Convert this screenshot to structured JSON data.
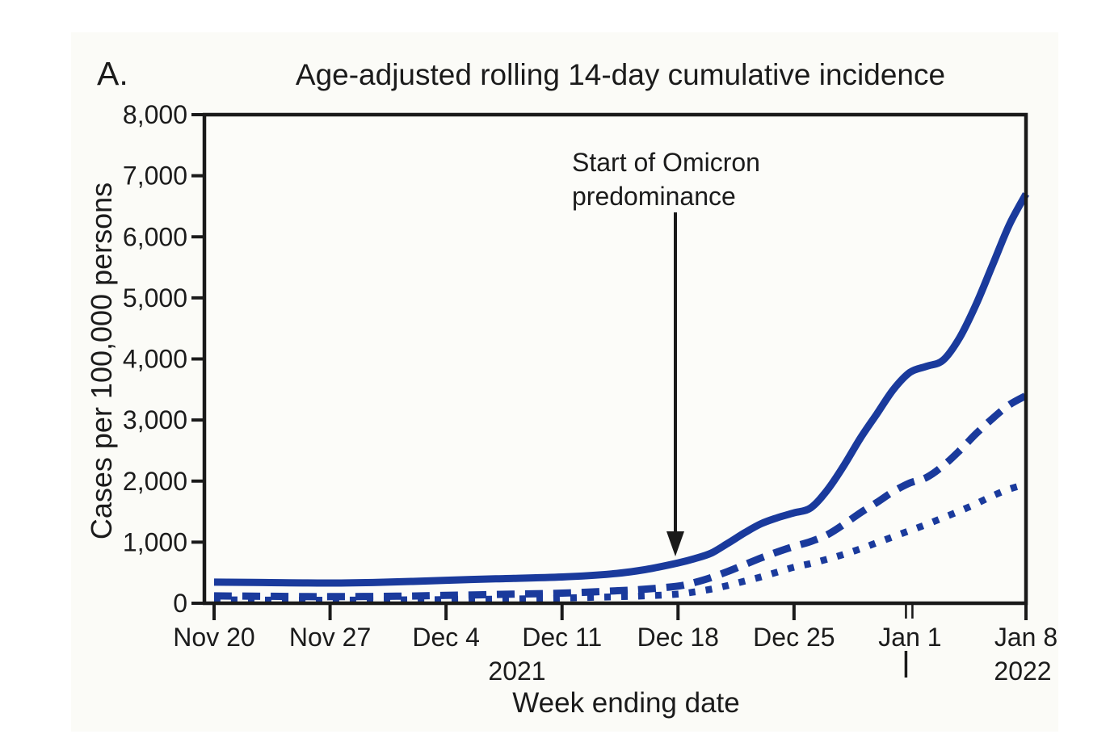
{
  "figure": {
    "panel_label": "A.",
    "title": "Age-adjusted rolling 14-day cumulative incidence",
    "annotation": {
      "line1": "Start of Omicron",
      "line2": "predominance"
    },
    "y_axis": {
      "title": "Cases per 100,000 persons"
    },
    "x_axis": {
      "title": "Week ending date",
      "year_left": "2021",
      "year_right": "2022"
    }
  },
  "colors": {
    "line_blue": "#1a3a9c",
    "axis_black": "#1a1a1a",
    "plot_fill": "#fcfcf9",
    "figure_fill": "#fbfbf7"
  },
  "chart_data": {
    "type": "line",
    "title": "Age-adjusted rolling 14-day cumulative incidence",
    "xlabel": "Week ending date",
    "ylabel": "Cases per 100,000 persons",
    "ylim": [
      0,
      8000
    ],
    "y_tick_step": 1000,
    "y_tick_labels": [
      "8,000",
      "7,000",
      "6,000",
      "5,000",
      "4,000",
      "3,000",
      "2,000",
      "1,000",
      "0"
    ],
    "x_tick_labels": [
      "Nov 20",
      "Nov 27",
      "Dec 4",
      "Dec 11",
      "Dec 18",
      "Dec 25",
      "Jan 1",
      "Jan 8"
    ],
    "x_tick_days": [
      0,
      7,
      14,
      21,
      28,
      35,
      42,
      49
    ],
    "x_day_range": [
      0,
      49
    ],
    "year_break_label": "Jan 1",
    "year_left": "2021",
    "year_right": "2022",
    "grid": false,
    "legend": "none (line styles distinguish series)",
    "annotation": {
      "text": "Start of Omicron predominance",
      "arrow_x_day": 27.8,
      "arrow_points_to_y": 700
    },
    "series": [
      {
        "name": "solid-line",
        "style": "solid",
        "points": [
          [
            0,
            345
          ],
          [
            3,
            338
          ],
          [
            7,
            330
          ],
          [
            10,
            342
          ],
          [
            14,
            375
          ],
          [
            17,
            400
          ],
          [
            21,
            430
          ],
          [
            24,
            480
          ],
          [
            26,
            550
          ],
          [
            28,
            660
          ],
          [
            29,
            730
          ],
          [
            30,
            820
          ],
          [
            31,
            980
          ],
          [
            32,
            1150
          ],
          [
            33,
            1300
          ],
          [
            34,
            1400
          ],
          [
            35,
            1480
          ],
          [
            36,
            1560
          ],
          [
            37,
            1850
          ],
          [
            38,
            2250
          ],
          [
            39,
            2700
          ],
          [
            40,
            3100
          ],
          [
            41,
            3500
          ],
          [
            42,
            3780
          ],
          [
            43,
            3880
          ],
          [
            44,
            3980
          ],
          [
            45,
            4350
          ],
          [
            46,
            4900
          ],
          [
            47,
            5550
          ],
          [
            48,
            6200
          ],
          [
            49,
            6700
          ]
        ]
      },
      {
        "name": "dashed-line",
        "style": "dashed",
        "points": [
          [
            0,
            120
          ],
          [
            4,
            112
          ],
          [
            7,
            108
          ],
          [
            11,
            115
          ],
          [
            14,
            128
          ],
          [
            18,
            148
          ],
          [
            21,
            165
          ],
          [
            24,
            200
          ],
          [
            26,
            230
          ],
          [
            28,
            280
          ],
          [
            29,
            340
          ],
          [
            30,
            420
          ],
          [
            31,
            520
          ],
          [
            32,
            630
          ],
          [
            33,
            740
          ],
          [
            34,
            840
          ],
          [
            35,
            930
          ],
          [
            36,
            1010
          ],
          [
            37,
            1120
          ],
          [
            38,
            1290
          ],
          [
            39,
            1480
          ],
          [
            40,
            1650
          ],
          [
            41,
            1830
          ],
          [
            42,
            1970
          ],
          [
            43,
            2060
          ],
          [
            44,
            2250
          ],
          [
            45,
            2500
          ],
          [
            46,
            2780
          ],
          [
            47,
            3030
          ],
          [
            48,
            3250
          ],
          [
            49,
            3400
          ]
        ]
      },
      {
        "name": "dotted-line",
        "style": "dotted",
        "points": [
          [
            0,
            55
          ],
          [
            7,
            50
          ],
          [
            14,
            60
          ],
          [
            18,
            70
          ],
          [
            21,
            85
          ],
          [
            24,
            105
          ],
          [
            26,
            120
          ],
          [
            28,
            150
          ],
          [
            29,
            185
          ],
          [
            30,
            230
          ],
          [
            31,
            290
          ],
          [
            32,
            360
          ],
          [
            33,
            430
          ],
          [
            34,
            510
          ],
          [
            35,
            590
          ],
          [
            36,
            650
          ],
          [
            37,
            720
          ],
          [
            38,
            800
          ],
          [
            39,
            890
          ],
          [
            40,
            990
          ],
          [
            41,
            1090
          ],
          [
            42,
            1190
          ],
          [
            43,
            1290
          ],
          [
            44,
            1400
          ],
          [
            45,
            1510
          ],
          [
            46,
            1630
          ],
          [
            47,
            1760
          ],
          [
            48,
            1870
          ],
          [
            49,
            1950
          ]
        ]
      }
    ]
  }
}
